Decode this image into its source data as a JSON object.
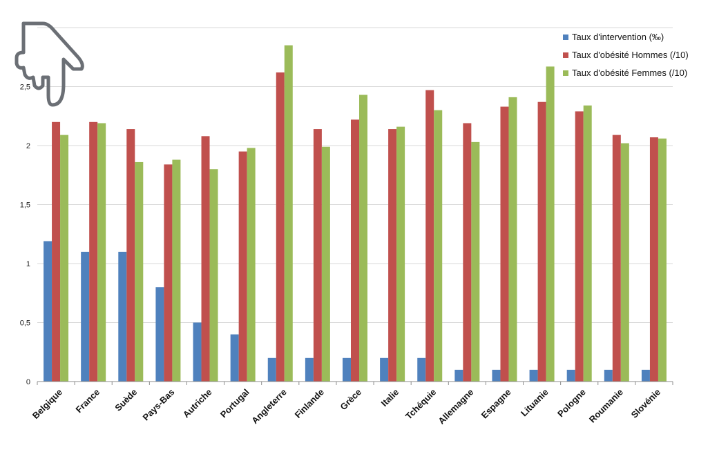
{
  "chart_data": {
    "type": "bar",
    "categories": [
      "Belgique",
      "France",
      "Suède",
      "Pays-Bas",
      "Autriche",
      "Portugal",
      "Angleterre",
      "Finlande",
      "Grèce",
      "Italie",
      "Tchéquie",
      "Allemagne",
      "Espagne",
      "Lituanie",
      "Pologne",
      "Roumanie",
      "Slovénie"
    ],
    "series": [
      {
        "name": "Taux d'intervention (‰)",
        "color": "#4f81bd",
        "values": [
          1.19,
          1.1,
          1.1,
          0.8,
          0.5,
          0.4,
          0.2,
          0.2,
          0.2,
          0.2,
          0.2,
          0.1,
          0.1,
          0.1,
          0.1,
          0.1,
          0.1
        ]
      },
      {
        "name": "Taux d'obésité Hommes (/10)",
        "color": "#c0504d",
        "values": [
          2.2,
          2.2,
          2.14,
          1.84,
          2.08,
          1.95,
          2.62,
          2.14,
          2.22,
          2.14,
          2.47,
          2.19,
          2.33,
          2.37,
          2.29,
          2.09,
          2.07
        ]
      },
      {
        "name": "Taux d'obésité Femmes (/10)",
        "color": "#9bbb59",
        "values": [
          2.09,
          2.19,
          1.86,
          1.88,
          1.8,
          1.98,
          2.85,
          1.99,
          2.43,
          2.16,
          2.3,
          2.03,
          2.41,
          2.67,
          2.34,
          2.02,
          2.06
        ]
      }
    ],
    "ylim": [
      0,
      3
    ],
    "yticks": [
      0,
      0.5,
      1,
      1.5,
      2,
      2.5
    ],
    "ytick_labels": [
      "0",
      "0,5",
      "1",
      "1,5",
      "2",
      "2,5"
    ],
    "grid": true,
    "legend_position": "top-right"
  },
  "overlay": {
    "icon": "hand-pointer-icon"
  }
}
